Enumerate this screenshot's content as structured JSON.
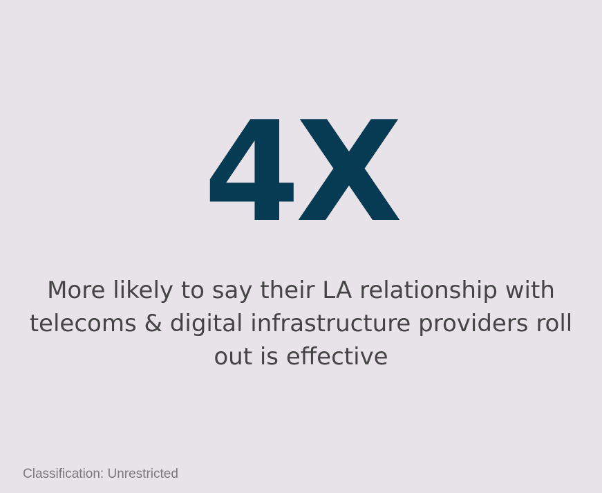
{
  "slide": {
    "statistic": "4X",
    "description": "More likely to say their LA relationship with telecoms & digital infrastructure providers roll out is effective",
    "classification": "Classification: Unrestricted"
  },
  "colors": {
    "background": "#e8e3e8",
    "statistic": "#073b54",
    "description": "#444444",
    "classification": "#7a7a7a"
  }
}
